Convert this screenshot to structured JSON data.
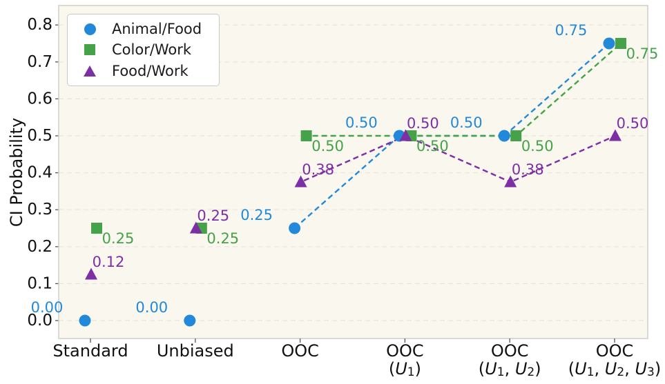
{
  "figure": {
    "ylabel": "CI Probability",
    "colors": {
      "plot_bg": "#faf7ee",
      "grid": "#e9e5da",
      "spine": "#d0cec8",
      "tick_text": "#111111",
      "animal_food": "#2289da",
      "color_work": "#45a248",
      "food_work": "#7d2fa6"
    }
  },
  "legend": {
    "items": [
      {
        "label": "Animal/Food",
        "marker": "circle"
      },
      {
        "label": "Color/Work",
        "marker": "square"
      },
      {
        "label": "Food/Work",
        "marker": "triangle"
      }
    ]
  },
  "chart_data": {
    "type": "scatter",
    "title": "",
    "xlabel": "",
    "ylabel": "CI Probability",
    "categories": [
      "Standard",
      "Unbiased",
      "OOC",
      "OOC (U_1)",
      "OOC (U_1, U_2)",
      "OOC (U_1, U_2, U_3)"
    ],
    "category_tick_lines": [
      [
        "Standard"
      ],
      [
        "Unbiased"
      ],
      [
        "OOC"
      ],
      [
        "OOC",
        "(U_1)"
      ],
      [
        "OOC",
        "(U_1, U_2)"
      ],
      [
        "OOC",
        "(U_1, U_2, U_3)"
      ]
    ],
    "yticks": [
      "0.0",
      "0.1",
      "0.2",
      "0.3",
      "0.4",
      "0.5",
      "0.6",
      "0.7",
      "0.8"
    ],
    "ylim": [
      -0.047,
      0.849
    ],
    "grid": "horizontal-dashed",
    "legend_position": "upper-left",
    "line_style": "dashed",
    "line_start_index": 2,
    "series": [
      {
        "name": "Animal/Food",
        "marker": "circle",
        "color": "#2289da",
        "values": [
          0.0,
          0.0,
          0.25,
          0.5,
          0.5,
          0.75
        ],
        "point_labels": [
          "0.00",
          "0.00",
          "0.25",
          "0.50",
          "0.50",
          "0.75"
        ]
      },
      {
        "name": "Color/Work",
        "marker": "square",
        "color": "#45a248",
        "values": [
          0.25,
          0.25,
          0.5,
          0.5,
          0.5,
          0.75
        ],
        "point_labels": [
          "0.25",
          "0.25",
          "0.50",
          "0.50",
          "0.50",
          "0.75"
        ]
      },
      {
        "name": "Food/Work",
        "marker": "triangle",
        "color": "#7d2fa6",
        "values": [
          0.125,
          0.25,
          0.375,
          0.5,
          0.375,
          0.5
        ],
        "point_labels": [
          "0.12",
          "0.25",
          "0.38",
          "0.50",
          "0.38",
          "0.50"
        ]
      }
    ]
  }
}
